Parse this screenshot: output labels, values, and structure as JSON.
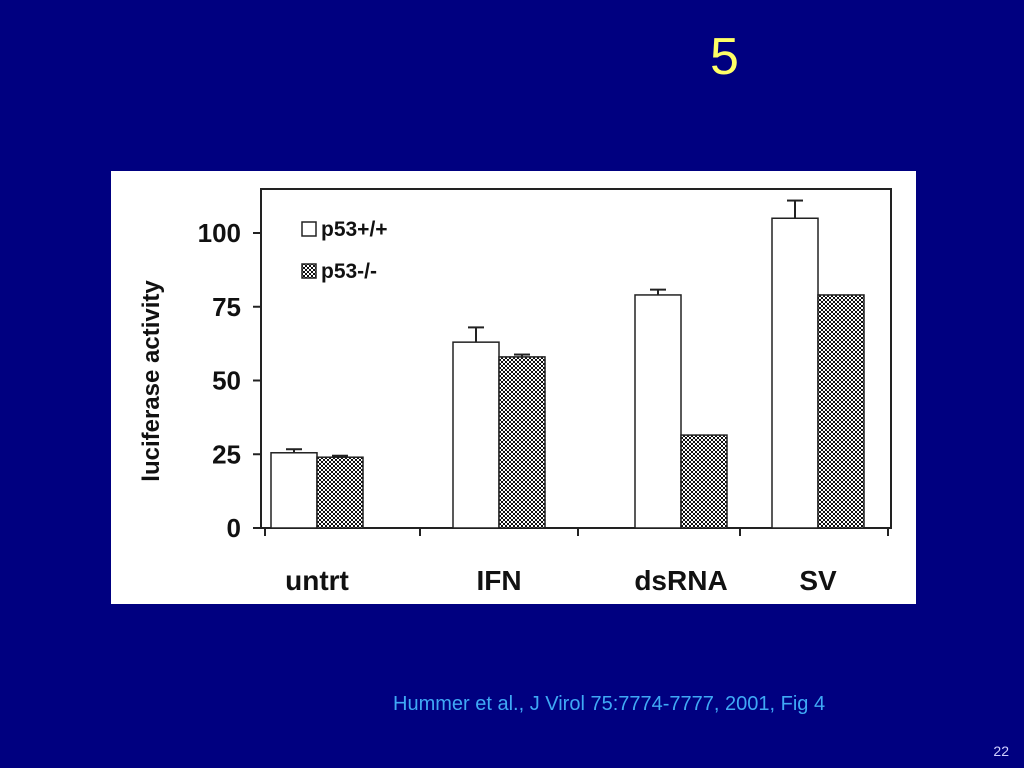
{
  "slide": {
    "title": "5",
    "citation": "Hummer et al., J Virol 75:7774-7777, 2001, Fig 4",
    "page_number": "22",
    "colors": {
      "background": "#000080",
      "title": "#ffff66",
      "citation": "#3fa9f5",
      "panel": "#ffffff"
    }
  },
  "chart_data": {
    "type": "bar",
    "title": "",
    "xlabel": "",
    "ylabel": "luciferase activity",
    "ylim": [
      0,
      115
    ],
    "yticks": [
      0,
      25,
      50,
      75,
      100
    ],
    "ytick_labels": [
      "0",
      "25",
      "50",
      "75",
      "100"
    ],
    "categories": [
      "untrt",
      "IFN",
      "dsRNA",
      "SV"
    ],
    "series": [
      {
        "name": "p53+/+",
        "values": [
          25.5,
          63,
          79,
          105
        ],
        "errors": [
          1.2,
          5,
          1.8,
          6
        ],
        "fill": "open"
      },
      {
        "name": "p53-/-",
        "values": [
          24,
          58,
          31.5,
          79
        ],
        "errors": [
          0.5,
          0.8,
          0,
          0
        ],
        "fill": "dotted"
      }
    ],
    "legend_position": "top-left",
    "grid": false
  }
}
